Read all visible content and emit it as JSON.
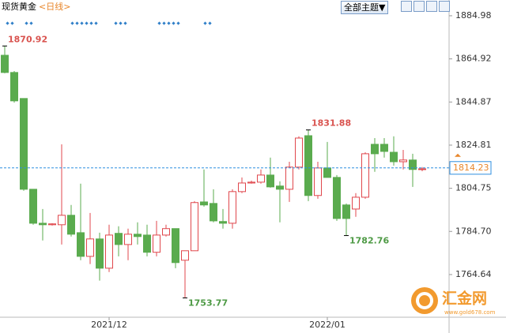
{
  "header": {
    "symbol": "现货黄金",
    "period": "<日线>"
  },
  "toolbar": {
    "theme_button": "全部主题▼"
  },
  "watermark": {
    "name": "汇金网",
    "url": "www.gold678.com"
  },
  "chart_data": {
    "type": "candlestick",
    "categories": [
      null,
      null,
      null,
      null,
      null,
      null,
      null,
      null,
      null,
      null,
      null,
      "2021/12",
      null,
      null,
      null,
      null,
      null,
      null,
      null,
      null,
      null,
      null,
      null,
      null,
      null,
      null,
      null,
      null,
      null,
      null,
      null,
      null,
      null,
      null,
      "2022/01",
      null,
      null,
      null,
      null,
      null,
      null,
      null,
      null,
      null,
      null
    ],
    "open": [
      1866.6,
      1858.6,
      1846.5,
      1804.3,
      1788.5,
      1787.8,
      1787.8,
      1792.2,
      1784.1,
      1773.1,
      1781.2,
      1767.6,
      1783.8,
      1778.6,
      1783.4,
      1783.0,
      1775.0,
      1783.0,
      1786.0,
      1771.3,
      1775.7,
      1798.4,
      1797.7,
      1789.3,
      1788.5,
      1803.2,
      1807.2,
      1807.6,
      1810.9,
      1805.8,
      1804.3,
      1814.6,
      1829.2,
      1801.4,
      1814.2,
      1809.8,
      1797.0,
      1795.1,
      1800.6,
      1825.2,
      1825.2,
      1821.5,
      1817.1,
      1817.9,
      1813.5
    ],
    "high": [
      1870.92,
      1859.3,
      1846.5,
      1804.3,
      1795.1,
      1788.5,
      1825.2,
      1797.0,
      1806.9,
      1793.3,
      1784.1,
      1787.8,
      1787.1,
      1786.0,
      1788.9,
      1787.8,
      1789.6,
      1787.8,
      1786.0,
      1775.7,
      1798.8,
      1813.5,
      1804.3,
      1795.1,
      1804.3,
      1809.8,
      1808.3,
      1813.5,
      1819.0,
      1808.0,
      1817.1,
      1828.9,
      1831.88,
      1817.1,
      1826.3,
      1810.9,
      1797.7,
      1802.5,
      1821.5,
      1828.1,
      1828.1,
      1828.9,
      1822.6,
      1820.8,
      1814.6
    ],
    "low": [
      1858.2,
      1844.6,
      1803.6,
      1787.8,
      1780.5,
      1787.4,
      1778.6,
      1782.3,
      1771.3,
      1769.5,
      1761.8,
      1765.8,
      1773.1,
      1771.3,
      1778.6,
      1773.1,
      1773.1,
      1782.3,
      1767.6,
      1753.77,
      1775.7,
      1796.2,
      1788.9,
      1786.0,
      1786.0,
      1802.5,
      1806.9,
      1806.9,
      1805.0,
      1788.9,
      1798.4,
      1813.5,
      1798.8,
      1799.9,
      1809.8,
      1789.6,
      1782.76,
      1791.5,
      1799.9,
      1812.4,
      1819.0,
      1815.3,
      1813.5,
      1805.4,
      1812.7
    ],
    "close": [
      1858.6,
      1845.4,
      1804.3,
      1788.5,
      1787.8,
      1788.2,
      1792.2,
      1783.4,
      1773.1,
      1781.2,
      1767.6,
      1783.0,
      1778.6,
      1783.4,
      1782.3,
      1775.0,
      1783.0,
      1786.0,
      1770.2,
      1775.7,
      1798.1,
      1797.0,
      1789.6,
      1788.5,
      1803.2,
      1807.2,
      1807.6,
      1810.9,
      1805.4,
      1804.3,
      1814.6,
      1828.1,
      1801.4,
      1814.2,
      1809.8,
      1790.7,
      1790.7,
      1800.6,
      1820.8,
      1820.8,
      1821.9,
      1817.1,
      1817.9,
      1813.5,
      1813.8
    ],
    "up_color": "#e0474c",
    "down_color": "#5aab4e",
    "ylim": [
      1744.8,
      1892.3
    ],
    "yticks": [
      1884.98,
      1864.92,
      1844.87,
      1824.81,
      1804.75,
      {
        "value": 1784.7,
        "label": "1784.70"
      },
      1764.64
    ],
    "current_price": 1814.23,
    "current_price_color": "#2f8fe0",
    "annotations": [
      {
        "value": 1870.92,
        "color": "#d9534f"
      },
      {
        "value": 1831.88,
        "color": "#d9534f"
      },
      {
        "value": 1753.77,
        "color": "#4e9a45"
      },
      {
        "value": 1782.76,
        "color": "#4e9a45"
      }
    ]
  }
}
